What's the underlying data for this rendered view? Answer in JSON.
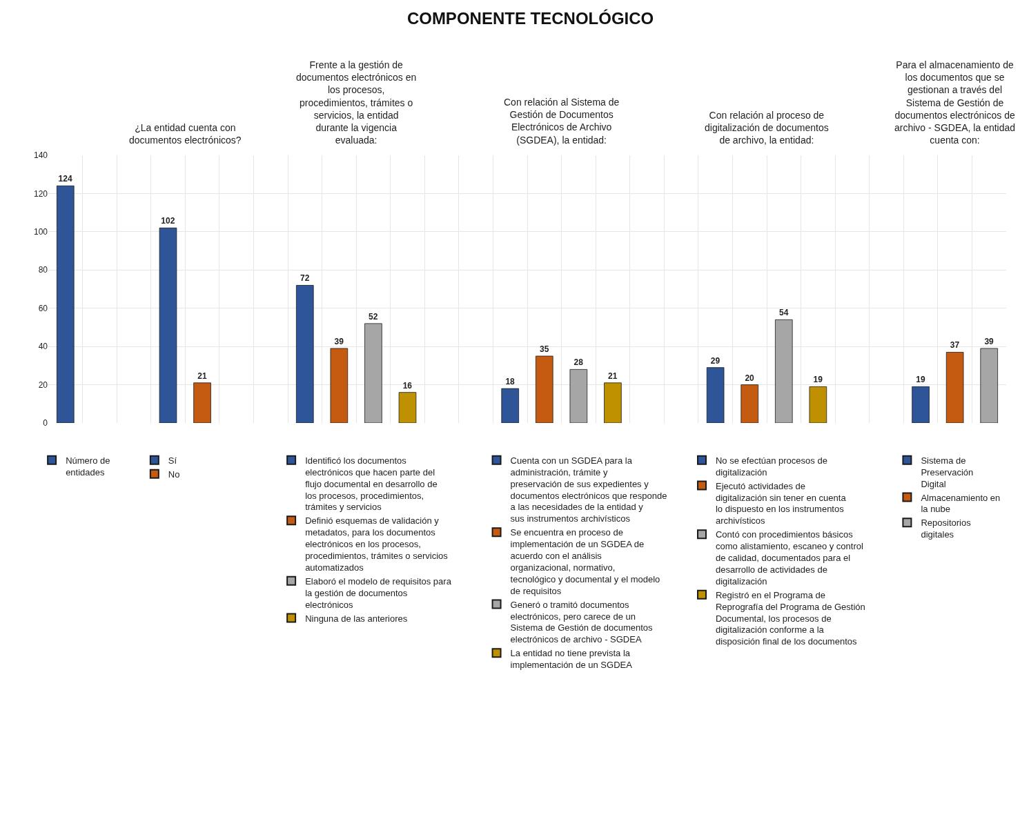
{
  "chart_data": {
    "type": "bar",
    "title": "COMPONENTE TECNOLÓGICO",
    "categories": [
      null,
      null,
      null,
      null,
      null,
      null,
      null,
      null,
      null,
      null,
      null,
      null,
      null,
      null,
      null,
      null,
      null,
      null,
      null,
      null,
      null,
      null,
      null,
      null,
      null,
      null,
      null,
      null
    ],
    "series": [
      {
        "name": "Número de entidades",
        "color": "#2e5597",
        "values": [
          124,
          null,
          null,
          null,
          null,
          null,
          null,
          null,
          null,
          null,
          null,
          null,
          null,
          null,
          null,
          null,
          null,
          null,
          null,
          null,
          null,
          null,
          null,
          null,
          null,
          null,
          null,
          null
        ]
      },
      {
        "name": "Sí",
        "color": "#2e5597",
        "values": [
          null,
          null,
          null,
          102,
          null,
          null,
          null,
          null,
          null,
          null,
          null,
          null,
          null,
          null,
          null,
          null,
          null,
          null,
          null,
          null,
          null,
          null,
          null,
          null,
          null,
          null,
          null,
          null
        ]
      },
      {
        "name": "No",
        "color": "#c55a11",
        "values": [
          null,
          null,
          null,
          null,
          21,
          null,
          null,
          null,
          null,
          null,
          null,
          null,
          null,
          null,
          null,
          null,
          null,
          null,
          null,
          null,
          null,
          null,
          null,
          null,
          null,
          null,
          null,
          null
        ]
      },
      {
        "name": "Identificó los documentos electrónicos que hacen parte del flujo documental en desarrollo de los procesos, procedimientos, trámites y servicios",
        "color": "#2e5597",
        "values": [
          null,
          null,
          null,
          null,
          null,
          null,
          null,
          72,
          null,
          null,
          null,
          null,
          null,
          null,
          null,
          null,
          null,
          null,
          null,
          null,
          null,
          null,
          null,
          null,
          null,
          null,
          null,
          null
        ]
      },
      {
        "name": "Definió esquemas de validación y metadatos, para los documentos electrónicos en los procesos, procedimientos, trámites o servicios automatizados",
        "color": "#c55a11",
        "values": [
          null,
          null,
          null,
          null,
          null,
          null,
          null,
          null,
          39,
          null,
          null,
          null,
          null,
          null,
          null,
          null,
          null,
          null,
          null,
          null,
          null,
          null,
          null,
          null,
          null,
          null,
          null,
          null
        ]
      },
      {
        "name": "Elaboró el modelo de requisitos para la gestión de documentos electrónicos",
        "color": "#a6a6a6",
        "values": [
          null,
          null,
          null,
          null,
          null,
          null,
          null,
          null,
          null,
          52,
          null,
          null,
          null,
          null,
          null,
          null,
          null,
          null,
          null,
          null,
          null,
          null,
          null,
          null,
          null,
          null,
          null,
          null
        ]
      },
      {
        "name": "Ninguna de las anteriores",
        "color": "#bf9000",
        "values": [
          null,
          null,
          null,
          null,
          null,
          null,
          null,
          null,
          null,
          null,
          16,
          null,
          null,
          null,
          null,
          null,
          null,
          null,
          null,
          null,
          null,
          null,
          null,
          null,
          null,
          null,
          null,
          null
        ]
      },
      {
        "name": "Cuenta con un SGDEA para la administración, trámite y preservación de sus expedientes y documentos electrónicos que responde a las necesidades de la entidad y sus instrumentos archivísticos",
        "color": "#2e5597",
        "values": [
          null,
          null,
          null,
          null,
          null,
          null,
          null,
          null,
          null,
          null,
          null,
          null,
          null,
          18,
          null,
          null,
          null,
          null,
          null,
          null,
          null,
          null,
          null,
          null,
          null,
          null,
          null,
          null
        ]
      },
      {
        "name": "Se encuentra en proceso de implementación de un SGDEA de acuerdo con el análisis organizacional, normativo, tecnológico y documental y el modelo de requisitos",
        "color": "#c55a11",
        "values": [
          null,
          null,
          null,
          null,
          null,
          null,
          null,
          null,
          null,
          null,
          null,
          null,
          null,
          null,
          35,
          null,
          null,
          null,
          null,
          null,
          null,
          null,
          null,
          null,
          null,
          null,
          null,
          null
        ]
      },
      {
        "name": "Generó o tramitó documentos electrónicos, pero carece de un Sistema de Gestión de documentos electrónicos de archivo - SGDEA",
        "color": "#a6a6a6",
        "values": [
          null,
          null,
          null,
          null,
          null,
          null,
          null,
          null,
          null,
          null,
          null,
          null,
          null,
          null,
          null,
          28,
          null,
          null,
          null,
          null,
          null,
          null,
          null,
          null,
          null,
          null,
          null,
          null
        ]
      },
      {
        "name": "La entidad no tiene prevista la implementación de un SGDEA",
        "color": "#bf9000",
        "values": [
          null,
          null,
          null,
          null,
          null,
          null,
          null,
          null,
          null,
          null,
          null,
          null,
          null,
          null,
          null,
          null,
          21,
          null,
          null,
          null,
          null,
          null,
          null,
          null,
          null,
          null,
          null,
          null
        ]
      },
      {
        "name": "No se efectúan procesos de digitalización",
        "color": "#2e5597",
        "values": [
          null,
          null,
          null,
          null,
          null,
          null,
          null,
          null,
          null,
          null,
          null,
          null,
          null,
          null,
          null,
          null,
          null,
          null,
          null,
          29,
          null,
          null,
          null,
          null,
          null,
          null,
          null,
          null
        ]
      },
      {
        "name": "Ejecutó actividades de digitalización sin tener en cuenta lo dispuesto en los instrumentos archivísticos",
        "color": "#c55a11",
        "values": [
          null,
          null,
          null,
          null,
          null,
          null,
          null,
          null,
          null,
          null,
          null,
          null,
          null,
          null,
          null,
          null,
          null,
          null,
          null,
          null,
          20,
          null,
          null,
          null,
          null,
          null,
          null,
          null
        ]
      },
      {
        "name": "Contó con procedimientos básicos como alistamiento, escaneo y control de calidad, documentados para el desarrollo de actividades de digitalización",
        "color": "#a6a6a6",
        "values": [
          null,
          null,
          null,
          null,
          null,
          null,
          null,
          null,
          null,
          null,
          null,
          null,
          null,
          null,
          null,
          null,
          null,
          null,
          null,
          null,
          null,
          54,
          null,
          null,
          null,
          null,
          null,
          null
        ]
      },
      {
        "name": "Registró en el Programa de Reprografía del Programa de Gestión Documental, los procesos de digitalización conforme a la disposición final de los documentos",
        "color": "#bf9000",
        "values": [
          null,
          null,
          null,
          null,
          null,
          null,
          null,
          null,
          null,
          null,
          null,
          null,
          null,
          null,
          null,
          null,
          null,
          null,
          null,
          null,
          null,
          null,
          19,
          null,
          null,
          null,
          null,
          null
        ]
      },
      {
        "name": "Sistema de Preservación Digital",
        "color": "#2e5597",
        "values": [
          null,
          null,
          null,
          null,
          null,
          null,
          null,
          null,
          null,
          null,
          null,
          null,
          null,
          null,
          null,
          null,
          null,
          null,
          null,
          null,
          null,
          null,
          null,
          null,
          null,
          19,
          null,
          null
        ]
      },
      {
        "name": "Almacenamiento en la nube",
        "color": "#c55a11",
        "values": [
          null,
          null,
          null,
          null,
          null,
          null,
          null,
          null,
          null,
          null,
          null,
          null,
          null,
          null,
          null,
          null,
          null,
          null,
          null,
          null,
          null,
          null,
          null,
          null,
          null,
          null,
          37,
          null
        ]
      },
      {
        "name": "Repositorios digitales",
        "color": "#a6a6a6",
        "values": [
          null,
          null,
          null,
          null,
          null,
          null,
          null,
          null,
          null,
          null,
          null,
          null,
          null,
          null,
          null,
          null,
          null,
          null,
          null,
          null,
          null,
          null,
          null,
          null,
          null,
          null,
          null,
          39
        ]
      }
    ],
    "annotations": [
      "¿La entidad cuenta con documentos electrónicos?",
      "Frente a la gestión de documentos electrónicos en los procesos, procedimientos, trámites o servicios, la entidad durante la vigencia evaluada:",
      "Con relación al Sistema de Gestión de Documentos Electrónicos de Archivo (SGDEA), la entidad:",
      "Con relación al proceso de digitalización de documentos de archivo, la entidad:",
      "Para el almacenamiento de los documentos que se gestionan a través del Sistema de Gestión de documentos electrónicos de archivo - SGDEA, la entidad cuenta con:"
    ],
    "ylim": [
      0,
      140
    ],
    "yticks": [
      0,
      20,
      40,
      60,
      80,
      100,
      120,
      140
    ],
    "grid": true,
    "data_labels": true,
    "legend": "bottom"
  }
}
